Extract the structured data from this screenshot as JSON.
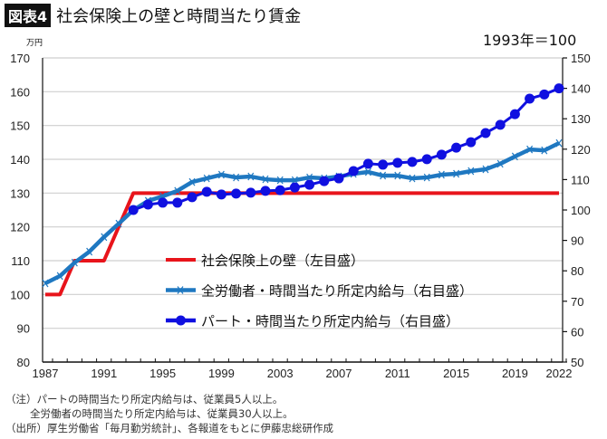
{
  "header": {
    "figure_label": "図表4",
    "title": "社会保険上の壁と時間当たり賃金",
    "index_note": "1993年＝100",
    "unit_left": "万円"
  },
  "chart_data": {
    "type": "line",
    "title": "社会保険上の壁と時間当たり賃金",
    "x": [
      1987,
      1988,
      1989,
      1990,
      1991,
      1992,
      1993,
      1994,
      1995,
      1996,
      1997,
      1998,
      1999,
      2000,
      2001,
      2002,
      2003,
      2004,
      2005,
      2006,
      2007,
      2008,
      2009,
      2010,
      2011,
      2012,
      2013,
      2014,
      2015,
      2016,
      2017,
      2018,
      2019,
      2020,
      2021,
      2022
    ],
    "x_ticks": [
      "1987",
      "1991",
      "1995",
      "1999",
      "2003",
      "2007",
      "2011",
      "2015",
      "2019",
      "2022"
    ],
    "y_left": {
      "label": "万円",
      "range": [
        80,
        170
      ],
      "ticks": [
        "80",
        "90",
        "100",
        "110",
        "120",
        "130",
        "140",
        "150",
        "160",
        "170"
      ]
    },
    "y_right": {
      "label": "1993年＝100",
      "range": [
        50,
        150
      ],
      "ticks": [
        "50",
        "60",
        "70",
        "80",
        "90",
        "100",
        "110",
        "120",
        "130",
        "140",
        "150"
      ]
    },
    "grid": true,
    "legend_placement": "center",
    "series": [
      {
        "name": "社会保険上の壁（左目盛）",
        "axis": "left",
        "color": "#e8141b",
        "marker": "none",
        "values": [
          100,
          100,
          110,
          110,
          110,
          120,
          130,
          130,
          130,
          130,
          130,
          130,
          130,
          130,
          130,
          130,
          130,
          130,
          130,
          130,
          130,
          130,
          130,
          130,
          130,
          130,
          130,
          130,
          130,
          130,
          130,
          130,
          130,
          130,
          130,
          130
        ]
      },
      {
        "name": "全労働者・時間当たり所定内給与（右目盛）",
        "axis": "right",
        "color": "#1f78c1",
        "marker": "x",
        "values": [
          75.9,
          78.3,
          82.7,
          86.3,
          91.1,
          95.5,
          100,
          103,
          104.5,
          106.3,
          109.2,
          110.4,
          111.6,
          110.7,
          111,
          110.1,
          109.8,
          109.8,
          110.7,
          110.4,
          111,
          111.9,
          112.5,
          111.3,
          111.3,
          110.4,
          110.7,
          111.6,
          111.9,
          112.8,
          113.4,
          115.2,
          117.6,
          119.9,
          119.6,
          122
        ]
      },
      {
        "name": "パート・時間当たり所定内給与（右目盛）",
        "axis": "right",
        "color": "#1010e0",
        "marker": "circle",
        "values": [
          null,
          null,
          null,
          null,
          null,
          null,
          100,
          101.8,
          102.4,
          102.4,
          104.2,
          106,
          105.1,
          105.4,
          105.7,
          106.3,
          106.5,
          107.4,
          108.3,
          109.5,
          110.4,
          112.8,
          115.2,
          114.9,
          115.5,
          115.8,
          116.7,
          118.2,
          120.5,
          122.3,
          125.3,
          128,
          131.5,
          136.6,
          138,
          140
        ]
      }
    ]
  },
  "notes": {
    "note1": "（注）パートの時間当たり所定内給与は、従業員5人以上。",
    "note2": "全労働者の時間当たり所定内給与は、従業員30人以上。",
    "source": "（出所）厚生労働省「毎月勤労統計」、各報道をもとに伊藤忠総研作成"
  }
}
